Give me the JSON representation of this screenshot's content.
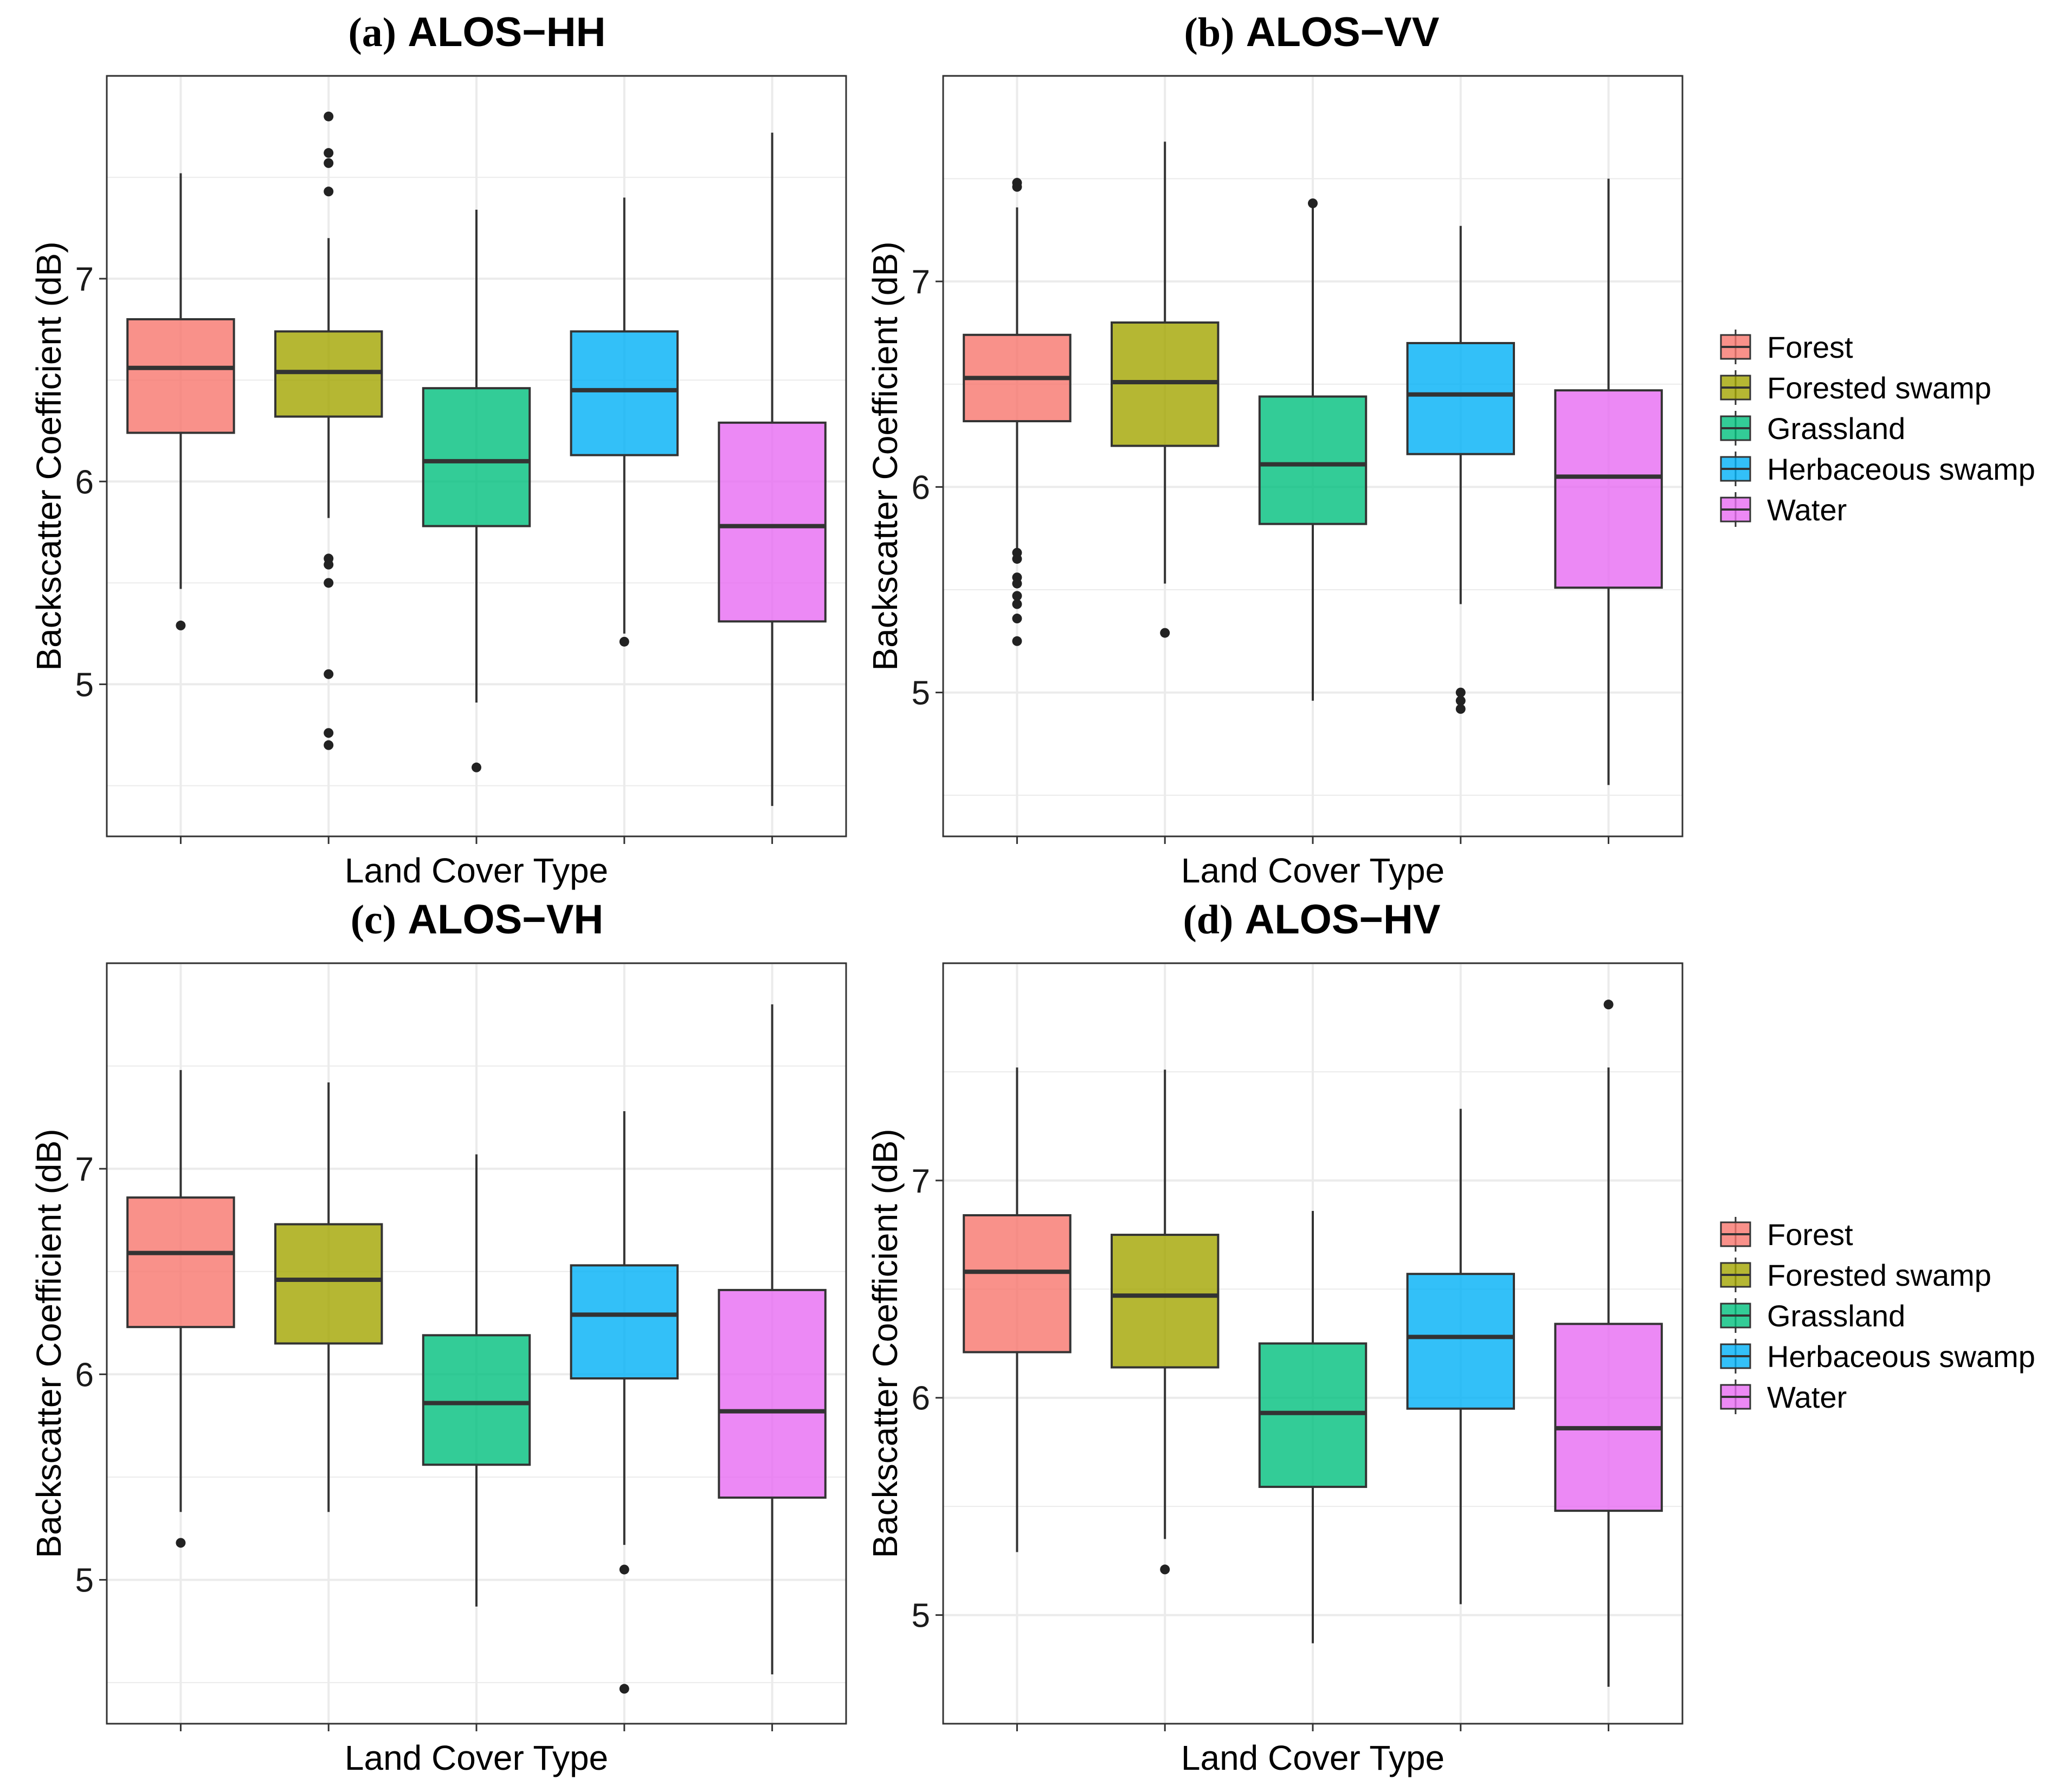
{
  "chart_data": [
    {
      "type": "box",
      "panel_label": "(a)",
      "title": "ALOS−HH",
      "xlabel": "Land Cover Type",
      "ylabel": "Backscatter Coefficient (dB)",
      "ylim": [
        4.25,
        8.0
      ],
      "yticks": [
        5,
        6,
        7
      ],
      "grid": true,
      "legend": "none",
      "boxes": [
        {
          "category": "Forest",
          "min": 5.47,
          "q1": 6.24,
          "median": 6.56,
          "q3": 6.8,
          "max": 7.52,
          "outliers": [
            5.29
          ]
        },
        {
          "category": "Forested swamp",
          "min": 5.82,
          "q1": 6.32,
          "median": 6.54,
          "q3": 6.74,
          "max": 7.2,
          "outliers": [
            7.8,
            7.62,
            7.57,
            7.43,
            5.62,
            5.59,
            5.5,
            5.05,
            4.76,
            4.7
          ]
        },
        {
          "category": "Grassland",
          "min": 4.91,
          "q1": 5.78,
          "median": 6.1,
          "q3": 6.46,
          "max": 7.34,
          "outliers": [
            4.59
          ]
        },
        {
          "category": "Herbaceous swamp",
          "min": 5.25,
          "q1": 6.13,
          "median": 6.45,
          "q3": 6.74,
          "max": 7.4,
          "outliers": [
            5.21
          ]
        },
        {
          "category": "Water",
          "min": 4.4,
          "q1": 5.31,
          "median": 5.78,
          "q3": 6.29,
          "max": 7.72,
          "outliers": []
        }
      ]
    },
    {
      "type": "box",
      "panel_label": "(b)",
      "title": "ALOS−VV",
      "xlabel": "Land Cover Type",
      "ylabel": "Backscatter Coefficient (dB)",
      "ylim": [
        4.3,
        8.0
      ],
      "yticks": [
        5,
        6,
        7
      ],
      "grid": true,
      "legend": "right",
      "boxes": [
        {
          "category": "Forest",
          "min": 5.7,
          "q1": 6.32,
          "median": 6.53,
          "q3": 6.74,
          "max": 7.36,
          "outliers": [
            7.48,
            7.46,
            5.68,
            5.65,
            5.56,
            5.53,
            5.47,
            5.43,
            5.36,
            5.25
          ]
        },
        {
          "category": "Forested swamp",
          "min": 5.53,
          "q1": 6.2,
          "median": 6.51,
          "q3": 6.8,
          "max": 7.68,
          "outliers": [
            5.29
          ]
        },
        {
          "category": "Grassland",
          "min": 4.96,
          "q1": 5.82,
          "median": 6.11,
          "q3": 6.44,
          "max": 7.37,
          "outliers": [
            7.38
          ]
        },
        {
          "category": "Herbaceous swamp",
          "min": 5.43,
          "q1": 6.16,
          "median": 6.45,
          "q3": 6.7,
          "max": 7.27,
          "outliers": [
            5.0,
            4.96,
            4.92
          ]
        },
        {
          "category": "Water",
          "min": 4.55,
          "q1": 5.51,
          "median": 6.05,
          "q3": 6.47,
          "max": 7.5,
          "outliers": []
        }
      ]
    },
    {
      "type": "box",
      "panel_label": "(c)",
      "title": "ALOS−VH",
      "xlabel": "Land Cover Type",
      "ylabel": "Backscatter Coefficient (dB)",
      "ylim": [
        4.3,
        8.0
      ],
      "yticks": [
        5,
        6,
        7
      ],
      "grid": true,
      "legend": "none",
      "boxes": [
        {
          "category": "Forest",
          "min": 5.33,
          "q1": 6.23,
          "median": 6.59,
          "q3": 6.86,
          "max": 7.48,
          "outliers": [
            5.18
          ]
        },
        {
          "category": "Forested swamp",
          "min": 5.33,
          "q1": 6.15,
          "median": 6.46,
          "q3": 6.73,
          "max": 7.42,
          "outliers": []
        },
        {
          "category": "Grassland",
          "min": 4.87,
          "q1": 5.56,
          "median": 5.86,
          "q3": 6.19,
          "max": 7.07,
          "outliers": []
        },
        {
          "category": "Herbaceous swamp",
          "min": 5.17,
          "q1": 5.98,
          "median": 6.29,
          "q3": 6.53,
          "max": 7.28,
          "outliers": [
            5.05,
            4.47
          ]
        },
        {
          "category": "Water",
          "min": 4.54,
          "q1": 5.4,
          "median": 5.82,
          "q3": 6.41,
          "max": 7.8,
          "outliers": []
        }
      ]
    },
    {
      "type": "box",
      "panel_label": "(d)",
      "title": "ALOS−HV",
      "xlabel": "Land Cover Type",
      "ylabel": "Backscatter Coefficient (dB)",
      "ylim": [
        4.5,
        8.0
      ],
      "yticks": [
        5,
        6,
        7
      ],
      "grid": true,
      "legend": "right",
      "boxes": [
        {
          "category": "Forest",
          "min": 5.29,
          "q1": 6.21,
          "median": 6.58,
          "q3": 6.84,
          "max": 7.52,
          "outliers": []
        },
        {
          "category": "Forested swamp",
          "min": 5.35,
          "q1": 6.14,
          "median": 6.47,
          "q3": 6.75,
          "max": 7.51,
          "outliers": [
            5.21
          ]
        },
        {
          "category": "Grassland",
          "min": 4.87,
          "q1": 5.59,
          "median": 5.93,
          "q3": 6.25,
          "max": 6.86,
          "outliers": []
        },
        {
          "category": "Herbaceous swamp",
          "min": 5.05,
          "q1": 5.95,
          "median": 6.28,
          "q3": 6.57,
          "max": 7.33,
          "outliers": []
        },
        {
          "category": "Water",
          "min": 4.67,
          "q1": 5.48,
          "median": 5.86,
          "q3": 6.34,
          "max": 7.52,
          "outliers": [
            7.81
          ]
        }
      ]
    }
  ],
  "legend": {
    "items": [
      {
        "label": "Forest",
        "color": "#F8766D"
      },
      {
        "label": "Forested swamp",
        "color": "#A3A500"
      },
      {
        "label": "Grassland",
        "color": "#00BF7D"
      },
      {
        "label": "Herbaceous swamp",
        "color": "#00B0F6"
      },
      {
        "label": "Water",
        "color": "#E76BF3"
      }
    ]
  }
}
